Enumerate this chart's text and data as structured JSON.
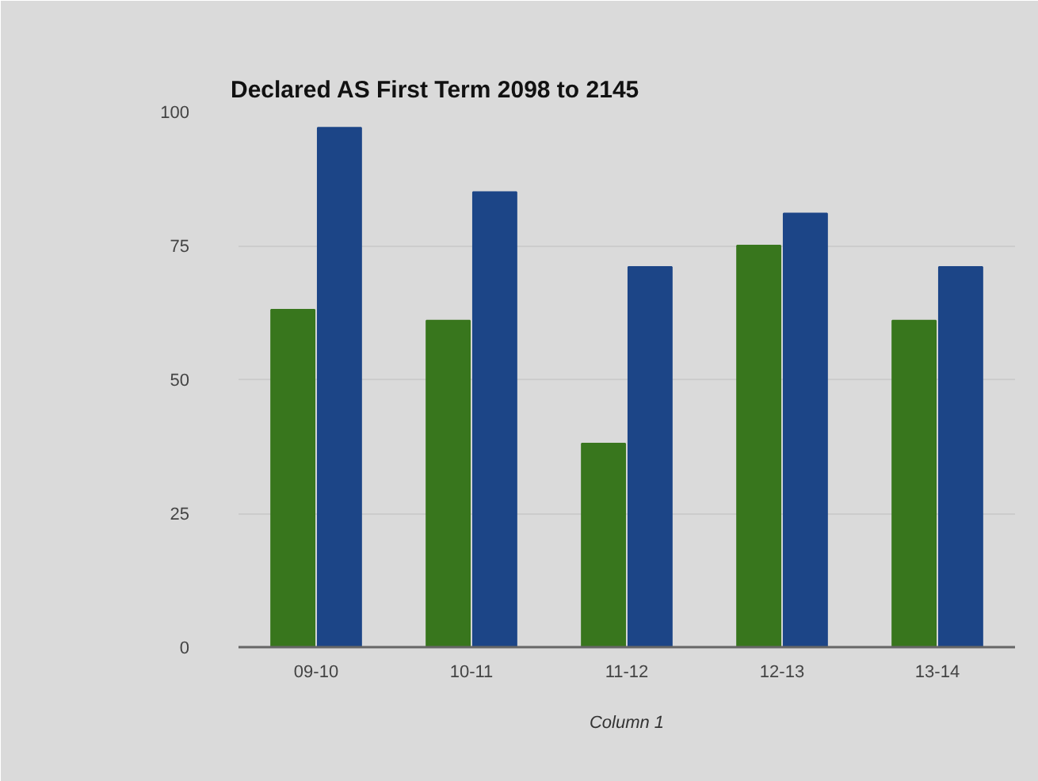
{
  "chart_data": {
    "type": "bar",
    "title": "Declared AS First Term 2098 to 2145",
    "xlabel": "Column 1",
    "categories": [
      "09-10",
      "10-11",
      "11-12",
      "12-13",
      "13-14"
    ],
    "series": [
      {
        "color": "#38761d",
        "values": [
          63,
          61,
          38,
          75,
          61
        ]
      },
      {
        "color": "#1c4587",
        "values": [
          97,
          85,
          71,
          81,
          71
        ]
      }
    ],
    "ylim": [
      0,
      100
    ],
    "yticks": [
      0,
      25,
      50,
      75,
      100
    ],
    "grid": "y"
  }
}
